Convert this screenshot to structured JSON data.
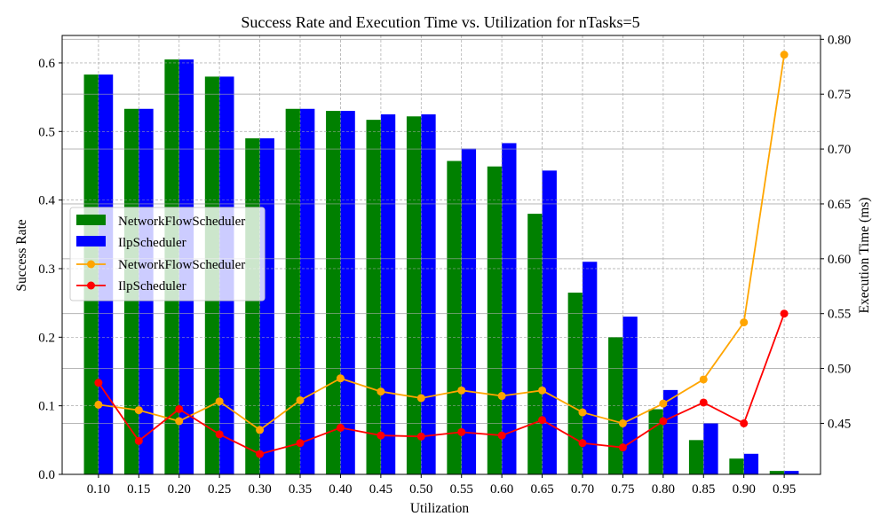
{
  "chart_data": {
    "type": "bar",
    "title": "Success Rate and Execution Time vs. Utilization for nTasks=5",
    "xlabel": "Utilization",
    "ylabel": "Success Rate",
    "y2label": "Execution Time (ms)",
    "categories": [
      "0.10",
      "0.15",
      "0.20",
      "0.25",
      "0.30",
      "0.35",
      "0.40",
      "0.45",
      "0.50",
      "0.55",
      "0.60",
      "0.65",
      "0.70",
      "0.75",
      "0.80",
      "0.85",
      "0.90",
      "0.95"
    ],
    "ylim": [
      0,
      0.64
    ],
    "yticks": [
      "0.0",
      "0.1",
      "0.2",
      "0.3",
      "0.4",
      "0.5",
      "0.6"
    ],
    "y2lim": [
      0.4035,
      0.8035
    ],
    "y2ticks": [
      "0.45",
      "0.50",
      "0.55",
      "0.60",
      "0.65",
      "0.70",
      "0.75",
      "0.80"
    ],
    "grid": true,
    "legend_position": "center-left",
    "bar_series": [
      {
        "name": "NetworkFlowScheduler",
        "color": "#008000",
        "values": [
          0.583,
          0.533,
          0.605,
          0.58,
          0.49,
          0.533,
          0.53,
          0.517,
          0.522,
          0.457,
          0.449,
          0.38,
          0.265,
          0.2,
          0.095,
          0.05,
          0.023,
          0.005
        ]
      },
      {
        "name": "IlpScheduler",
        "color": "#0000ff",
        "values": [
          0.583,
          0.533,
          0.605,
          0.58,
          0.49,
          0.533,
          0.53,
          0.525,
          0.525,
          0.475,
          0.483,
          0.443,
          0.31,
          0.23,
          0.123,
          0.075,
          0.03,
          0.005
        ]
      }
    ],
    "line_series": [
      {
        "name": "NetworkFlowScheduler",
        "color": "#ffa500",
        "values": [
          0.467,
          0.462,
          0.452,
          0.47,
          0.444,
          0.471,
          0.491,
          0.479,
          0.473,
          0.48,
          0.475,
          0.48,
          0.46,
          0.45,
          0.468,
          0.49,
          0.542,
          0.786
        ]
      },
      {
        "name": "IlpScheduler",
        "color": "#ff0000",
        "values": [
          0.487,
          0.434,
          0.463,
          0.44,
          0.422,
          0.432,
          0.446,
          0.439,
          0.438,
          0.442,
          0.439,
          0.453,
          0.432,
          0.428,
          0.452,
          0.469,
          0.45,
          0.55
        ]
      }
    ]
  }
}
